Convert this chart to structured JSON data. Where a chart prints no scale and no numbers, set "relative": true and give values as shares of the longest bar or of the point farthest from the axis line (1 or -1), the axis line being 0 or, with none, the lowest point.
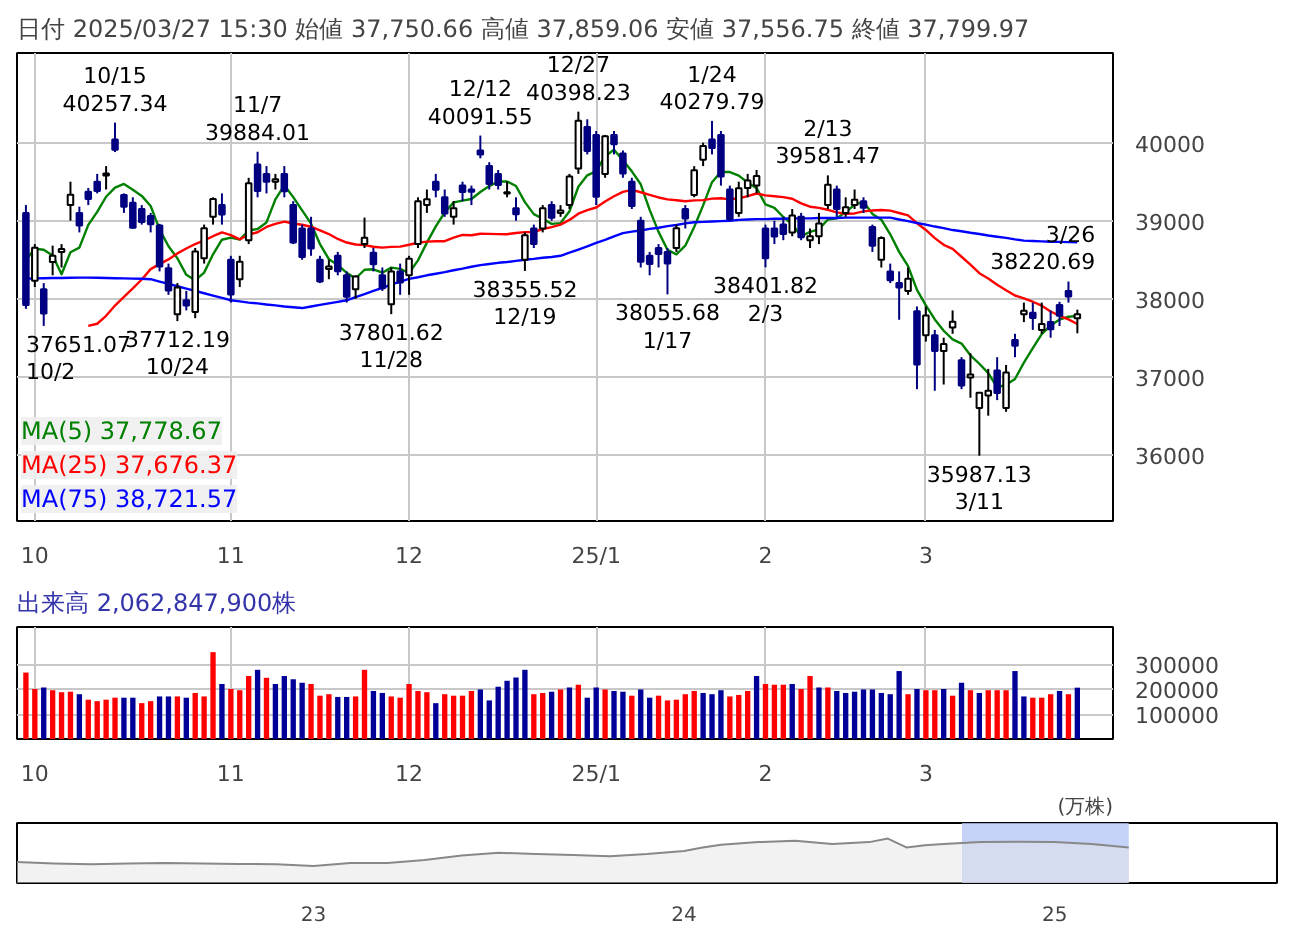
{
  "chart_data": [
    {
      "type": "candlestick",
      "title": "日付 2025/03/27 15:30 始値 37,750.66 高値 37,859.06 安値 37,556.75 終値 37,799.97",
      "categories": [
        null,
        "10",
        null,
        null,
        null,
        null,
        null,
        null,
        null,
        null,
        null,
        null,
        null,
        null,
        null,
        null,
        null,
        null,
        null,
        null,
        null,
        null,
        null,
        "11",
        null,
        null,
        null,
        null,
        null,
        null,
        null,
        null,
        null,
        null,
        null,
        null,
        null,
        null,
        null,
        null,
        null,
        null,
        null,
        "12",
        null,
        null,
        null,
        null,
        null,
        null,
        null,
        null,
        null,
        null,
        null,
        null,
        null,
        null,
        null,
        null,
        null,
        null,
        null,
        null,
        "25/1",
        null,
        null,
        null,
        null,
        null,
        null,
        null,
        null,
        null,
        null,
        null,
        null,
        null,
        null,
        null,
        null,
        null,
        null,
        "2",
        null,
        null,
        null,
        null,
        null,
        null,
        null,
        null,
        null,
        null,
        null,
        null,
        null,
        null,
        null,
        null,
        null,
        "3",
        null,
        null,
        null,
        null,
        null,
        null,
        null,
        null,
        null,
        null,
        null,
        null,
        null,
        null,
        null,
        null,
        null
      ],
      "ohlc": [
        [
          39100,
          39200,
          37870,
          37920
        ],
        [
          38230,
          38700,
          38150,
          38652
        ],
        [
          38120,
          38200,
          37651.07,
          37809
        ],
        [
          38470,
          38680,
          38300,
          38552
        ],
        [
          38600,
          38700,
          38400,
          38636
        ],
        [
          39200,
          39500,
          39000,
          39333
        ],
        [
          39100,
          39180,
          38850,
          38938
        ],
        [
          39370,
          39420,
          39200,
          39278
        ],
        [
          39500,
          39600,
          39350,
          39381
        ],
        [
          39580,
          39700,
          39400,
          39606
        ],
        [
          40040,
          40257.34,
          39880,
          39911
        ],
        [
          39330,
          39350,
          39100,
          39180
        ],
        [
          39230,
          39300,
          38900,
          38911
        ],
        [
          39150,
          39200,
          38950,
          38982
        ],
        [
          39060,
          39100,
          38850,
          38955
        ],
        [
          38940,
          38960,
          38350,
          38412
        ],
        [
          38390,
          38450,
          38050,
          38105
        ],
        [
          37800,
          38200,
          37712.19,
          38143
        ],
        [
          37980,
          38100,
          37850,
          37914
        ],
        [
          37830,
          38650,
          37750,
          38606
        ],
        [
          38520,
          38950,
          38450,
          38904
        ],
        [
          39050,
          39300,
          38950,
          39277
        ],
        [
          39200,
          39350,
          38950,
          39081
        ],
        [
          38500,
          38550,
          37950,
          38054
        ],
        [
          38250,
          38550,
          38150,
          38475
        ],
        [
          38750,
          39550,
          38700,
          39481
        ],
        [
          39720,
          39884.01,
          39300,
          39381
        ],
        [
          39600,
          39700,
          39350,
          39500
        ],
        [
          39500,
          39600,
          39400,
          39533
        ],
        [
          39600,
          39700,
          39300,
          39376
        ],
        [
          39200,
          39250,
          38700,
          38722
        ],
        [
          38900,
          38950,
          38500,
          38536
        ],
        [
          38900,
          39050,
          38550,
          38643
        ],
        [
          38500,
          38550,
          38200,
          38221
        ],
        [
          38380,
          38500,
          38250,
          38414
        ],
        [
          38550,
          38600,
          38300,
          38352
        ],
        [
          38300,
          38350,
          37950,
          38026
        ],
        [
          38120,
          38300,
          38000,
          38284
        ],
        [
          38700,
          39040,
          38650,
          38780
        ],
        [
          38590,
          38650,
          38350,
          38442
        ],
        [
          38300,
          38400,
          38100,
          38135
        ],
        [
          37930,
          38400,
          37801.62,
          38349
        ],
        [
          38350,
          38450,
          38050,
          38208
        ],
        [
          38300,
          38550,
          38050,
          38513
        ],
        [
          38700,
          39300,
          38650,
          39249
        ],
        [
          39200,
          39400,
          39100,
          39276
        ],
        [
          39500,
          39600,
          39300,
          39396
        ],
        [
          39300,
          39400,
          39050,
          39091
        ],
        [
          39050,
          39250,
          38950,
          39161
        ],
        [
          39450,
          39500,
          39250,
          39368
        ],
        [
          39400,
          39450,
          39200,
          39372
        ],
        [
          39900,
          40091.55,
          39800,
          39849
        ],
        [
          39700,
          39750,
          39400,
          39470
        ],
        [
          39600,
          39650,
          39400,
          39457
        ],
        [
          39350,
          39500,
          39300,
          39365
        ],
        [
          39160,
          39300,
          39000,
          39082
        ],
        [
          38500,
          38850,
          38355.52,
          38814
        ],
        [
          38900,
          38950,
          38650,
          38702
        ],
        [
          38900,
          39200,
          38850,
          39161
        ],
        [
          39200,
          39250,
          39000,
          39037
        ],
        [
          39100,
          39200,
          39050,
          39130
        ],
        [
          39200,
          39600,
          39150,
          39568
        ],
        [
          39670,
          40398.23,
          39600,
          40281
        ],
        [
          40200,
          40300,
          39850,
          39895
        ],
        [
          40100,
          40150,
          39200,
          39307
        ],
        [
          39600,
          40100,
          39550,
          40083
        ],
        [
          40100,
          40150,
          39850,
          39981
        ],
        [
          39860,
          39900,
          39550,
          39605
        ],
        [
          39500,
          39550,
          39150,
          39190
        ],
        [
          39000,
          39050,
          38400,
          38474
        ],
        [
          38550,
          38600,
          38300,
          38445
        ],
        [
          38650,
          38700,
          38400,
          38573
        ],
        [
          38600,
          38650,
          38055.68,
          38451
        ],
        [
          38650,
          38950,
          38600,
          38903
        ],
        [
          39150,
          39200,
          38900,
          39028
        ],
        [
          39330,
          39700,
          39300,
          39646
        ],
        [
          39780,
          40000,
          39700,
          39959
        ],
        [
          40040,
          40279.79,
          39850,
          39932
        ],
        [
          40100,
          40150,
          39450,
          39566
        ],
        [
          39400,
          39450,
          39000,
          39017
        ],
        [
          39100,
          39500,
          39050,
          39415
        ],
        [
          39420,
          39600,
          39300,
          39514
        ],
        [
          39450,
          39650,
          39350,
          39572
        ],
        [
          38900,
          38950,
          38401.82,
          38520
        ],
        [
          38900,
          39000,
          38700,
          38798
        ],
        [
          38950,
          39050,
          38750,
          38831
        ],
        [
          38850,
          39150,
          38800,
          39067
        ],
        [
          39050,
          39100,
          38750,
          38787
        ],
        [
          38750,
          38900,
          38650,
          38801
        ],
        [
          38800,
          39100,
          38700,
          38964
        ],
        [
          39200,
          39581.47,
          39150,
          39461
        ],
        [
          39400,
          39450,
          39050,
          39149
        ],
        [
          39100,
          39300,
          39050,
          39174
        ],
        [
          39200,
          39400,
          39150,
          39270
        ],
        [
          39250,
          39300,
          39100,
          39165
        ],
        [
          38920,
          38950,
          38600,
          38678
        ],
        [
          38500,
          38800,
          38400,
          38777
        ],
        [
          38350,
          38450,
          38200,
          38238
        ],
        [
          38200,
          38350,
          37730,
          38142
        ],
        [
          38100,
          38400,
          38050,
          38256
        ],
        [
          37840,
          37900,
          36840,
          37156
        ],
        [
          37530,
          37900,
          37450,
          37785
        ],
        [
          37530,
          37600,
          36820,
          37331
        ],
        [
          37330,
          37500,
          36900,
          37418
        ],
        [
          37630,
          37850,
          37550,
          37705
        ],
        [
          37210,
          37250,
          36840,
          36887
        ],
        [
          36990,
          37300,
          36730,
          37028
        ],
        [
          36600,
          36800,
          35987.13,
          36793
        ],
        [
          36760,
          37100,
          36500,
          36819
        ],
        [
          37080,
          37250,
          36700,
          36790
        ],
        [
          36600,
          37150,
          36550,
          37053
        ],
        [
          37470,
          37550,
          37250,
          37397
        ],
        [
          37800,
          37950,
          37700,
          37845
        ],
        [
          37820,
          37950,
          37600,
          37752
        ],
        [
          37600,
          37950,
          37550,
          37677
        ],
        [
          37700,
          37850,
          37500,
          37608
        ],
        [
          37920,
          37960,
          37650,
          37781
        ],
        [
          38100,
          38220.69,
          37950,
          38027
        ],
        [
          37750.66,
          37859.06,
          37556.75,
          37799.97
        ]
      ],
      "colors": [
        "#000080",
        "#ffffff",
        "#000080",
        "#ffffff",
        "#ffffff",
        "#ffffff",
        "#000080",
        "#000080",
        "#000080",
        "#ffffff",
        "#000080",
        "#000080",
        "#000080",
        "#000080",
        "#000080",
        "#000080",
        "#000080",
        "#ffffff",
        "#000080",
        "#ffffff",
        "#ffffff",
        "#ffffff",
        "#000080",
        "#000080",
        "#ffffff",
        "#ffffff",
        "#000080",
        "#000080",
        "#ffffff",
        "#000080",
        "#000080",
        "#000080",
        "#000080",
        "#000080",
        "#ffffff",
        "#000080",
        "#000080",
        "#ffffff",
        "#ffffff",
        "#000080",
        "#000080",
        "#ffffff",
        "#000080",
        "#ffffff",
        "#ffffff",
        "#ffffff",
        "#000080",
        "#000080",
        "#ffffff",
        "#000080",
        "#000080",
        "#000080",
        "#000080",
        "#000080",
        "#ffffff",
        "#000080",
        "#ffffff",
        "#000080",
        "#ffffff",
        "#000080",
        "#ffffff",
        "#ffffff",
        "#ffffff",
        "#000080",
        "#000080",
        "#ffffff",
        "#000080",
        "#000080",
        "#000080",
        "#000080",
        "#000080",
        "#000080",
        "#000080",
        "#ffffff",
        "#000080",
        "#ffffff",
        "#ffffff",
        "#000080",
        "#000080",
        "#000080",
        "#ffffff",
        "#ffffff",
        "#ffffff",
        "#000080",
        "#000080",
        "#000080",
        "#ffffff",
        "#000080",
        "#ffffff",
        "#ffffff",
        "#ffffff",
        "#000080",
        "#ffffff",
        "#ffffff",
        "#000080",
        "#000080",
        "#ffffff",
        "#000080",
        "#000080",
        "#ffffff",
        "#000080",
        "#ffffff",
        "#000080",
        "#ffffff",
        "#ffffff",
        "#000080",
        "#ffffff",
        "#ffffff",
        "#ffffff",
        "#000080",
        "#ffffff",
        "#000080",
        "#ffffff",
        "#000080",
        "#ffffff",
        "#000080",
        "#000080",
        "#000080",
        "#ffffff"
      ],
      "value_labels": [
        null,
        null,
        "37651.07\n10/2",
        null,
        null,
        null,
        null,
        null,
        null,
        null,
        "10/15\n40257.34",
        null,
        null,
        null,
        null,
        null,
        null,
        "37712.19\n10/24",
        null,
        null,
        null,
        null,
        null,
        null,
        null,
        null,
        "11/7\n39884.01",
        null,
        null,
        null,
        null,
        null,
        null,
        null,
        null,
        null,
        null,
        null,
        null,
        null,
        null,
        "37801.62\n11/28",
        null,
        null,
        null,
        null,
        null,
        null,
        null,
        null,
        null,
        "12/12\n40091.55",
        null,
        null,
        null,
        null,
        "38355.52\n12/19",
        null,
        null,
        null,
        null,
        null,
        "12/27\n40398.23",
        null,
        null,
        null,
        null,
        null,
        null,
        null,
        null,
        null,
        "38055.68\n1/17",
        null,
        null,
        null,
        null,
        "1/24\n40279.79",
        null,
        null,
        null,
        null,
        null,
        "38401.82\n2/3",
        null,
        null,
        null,
        null,
        null,
        null,
        "2/13\n39581.47",
        null,
        null,
        null,
        null,
        null,
        null,
        null,
        null,
        null,
        null,
        null,
        null,
        null,
        null,
        null,
        null,
        "35987.13\n3/11",
        null,
        null,
        null,
        null,
        null,
        null,
        null,
        null,
        null,
        "3/26\n38220.69",
        null
      ],
      "series": [
        {
          "name": "MA(5) 37,778.67",
          "color": "#008000",
          "type": "line",
          "values": [
            38497,
            38640,
            38627,
            38553,
            38314,
            38596,
            38654,
            38947,
            39113,
            39307,
            39423,
            39471,
            39398,
            39318,
            39188,
            38888,
            38673,
            38519,
            38306,
            38236,
            38334,
            38569,
            38756,
            38784,
            38758,
            38874,
            38894,
            38978,
            39274,
            39454,
            39302,
            39133,
            38962,
            38700,
            38507,
            38433,
            38331,
            38259,
            38371,
            38377,
            38333,
            38398,
            38383,
            38329,
            38491,
            38719,
            38928,
            39105,
            39235,
            39258,
            39278,
            39368,
            39444,
            39503,
            39503,
            39445,
            39238,
            39084,
            39025,
            38959,
            38969,
            39120,
            39435,
            39582,
            39636,
            39827,
            39909,
            39774,
            39633,
            39467,
            39139,
            38857,
            38627,
            38569,
            38680,
            38920,
            39197,
            39494,
            39626,
            39624,
            39578,
            39489,
            39417,
            39208,
            39164,
            39047,
            38958,
            38801,
            38857,
            38890,
            39016,
            39032,
            39110,
            39204,
            39244,
            39087,
            39013,
            38826,
            38600,
            38418,
            38114,
            37915,
            37734,
            37589,
            37479,
            37425,
            37274,
            37166,
            37046,
            36863,
            36897,
            36970,
            37181,
            37367,
            37545,
            37656,
            37733,
            37769,
            37778.67
          ]
        },
        {
          "name": "MA(25) 37,676.37",
          "color": "#ff0000",
          "type": "line",
          "values": [
            null,
            null,
            null,
            null,
            null,
            null,
            null,
            37651,
            37679,
            37781,
            37912,
            38023,
            38133,
            38246,
            38379,
            38443,
            38504,
            38581,
            38643,
            38701,
            38748,
            38801,
            38850,
            38815,
            38761,
            38823,
            38852,
            38920,
            38959,
            38989,
            38964,
            38948,
            38923,
            38876,
            38829,
            38766,
            38720,
            38695,
            38687,
            38666,
            38655,
            38665,
            38668,
            38692,
            38717,
            38732,
            38737,
            38737,
            38782,
            38817,
            38813,
            38832,
            38831,
            38828,
            38827,
            38842,
            38853,
            38855,
            38893,
            38918,
            38949,
            39010,
            39090,
            39135,
            39169,
            39247,
            39313,
            39369,
            39396,
            39365,
            39331,
            39298,
            39273,
            39263,
            39249,
            39260,
            39264,
            39283,
            39287,
            39273,
            39287,
            39315,
            39349,
            39324,
            39314,
            39302,
            39282,
            39222,
            39179,
            39165,
            39140,
            39107,
            39089,
            39093,
            39120,
            39130,
            39138,
            39129,
            39099,
            39068,
            38968,
            38881,
            38777,
            38691,
            38639,
            38538,
            38438,
            38327,
            38259,
            38179,
            38108,
            38041,
            38003,
            37961,
            37910,
            37836,
            37781,
            37735,
            37676.37
          ]
        },
        {
          "name": "MA(75) 38,721.57",
          "color": "#0000ff",
          "type": "line",
          "values": [
            38255,
            38260,
            38262,
            38265,
            38265,
            38268,
            38270,
            38270,
            38268,
            38265,
            38262,
            38260,
            38258,
            38255,
            38250,
            38220,
            38190,
            38160,
            38130,
            38100,
            38070,
            38040,
            38010,
            37980,
            37965,
            37950,
            37940,
            37925,
            37915,
            37900,
            37890,
            37880,
            37900,
            37920,
            37940,
            37960,
            37980,
            38020,
            38060,
            38100,
            38140,
            38180,
            38220,
            38255,
            38275,
            38300,
            38320,
            38340,
            38365,
            38385,
            38410,
            38430,
            38445,
            38460,
            38470,
            38485,
            38500,
            38510,
            38525,
            38535,
            38550,
            38590,
            38630,
            38670,
            38715,
            38755,
            38800,
            38840,
            38860,
            38875,
            38895,
            38910,
            38930,
            38945,
            38965,
            38980,
            38985,
            38990,
            38995,
            39000,
            39010,
            39015,
            39020,
            39020,
            39025,
            39025,
            39030,
            39030,
            39030,
            39035,
            39035,
            39035,
            39040,
            39040,
            39040,
            39040,
            39040,
            39040,
            39015,
            38995,
            38970,
            38950,
            38925,
            38905,
            38880,
            38865,
            38845,
            38830,
            38810,
            38795,
            38780,
            38760,
            38745,
            38740,
            38735,
            38730,
            38728,
            38725,
            38721.57
          ]
        }
      ],
      "ylim": [
        35150,
        41150
      ],
      "yticks": [
        36000,
        37000,
        38000,
        39000,
        40000
      ],
      "grid": true,
      "legend": "bottom left"
    },
    {
      "type": "bar",
      "title": "出来高 2,062,847,900株",
      "ylabel": "(万株)",
      "categories": [
        null,
        "10",
        null,
        null,
        null,
        null,
        null,
        null,
        null,
        null,
        null,
        null,
        null,
        null,
        null,
        null,
        null,
        null,
        null,
        null,
        null,
        null,
        null,
        "11",
        null,
        null,
        null,
        null,
        null,
        null,
        null,
        null,
        null,
        null,
        null,
        null,
        null,
        null,
        null,
        null,
        null,
        null,
        null,
        "12",
        null,
        null,
        null,
        null,
        null,
        null,
        null,
        null,
        null,
        null,
        null,
        null,
        null,
        null,
        null,
        null,
        null,
        null,
        null,
        null,
        "25/1",
        null,
        null,
        null,
        null,
        null,
        null,
        null,
        null,
        null,
        null,
        null,
        null,
        null,
        null,
        null,
        null,
        null,
        null,
        "2",
        null,
        null,
        null,
        null,
        null,
        null,
        null,
        null,
        null,
        null,
        null,
        null,
        null,
        null,
        null,
        null,
        null,
        "3",
        null,
        null,
        null,
        null,
        null,
        null,
        null,
        null,
        null,
        null,
        null,
        null,
        null,
        null,
        null,
        null,
        null
      ],
      "values": [
        267000,
        201000,
        207000,
        196000,
        188000,
        190000,
        180000,
        158000,
        152000,
        158000,
        166000,
        166000,
        166000,
        144000,
        152000,
        171000,
        171000,
        171000,
        166000,
        185000,
        171000,
        349000,
        221000,
        201000,
        196000,
        253000,
        278000,
        246000,
        221000,
        253000,
        240000,
        226000,
        221000,
        174000,
        180000,
        169000,
        169000,
        171000,
        278000,
        193000,
        185000,
        171000,
        166000,
        221000,
        193000,
        188000,
        144000,
        180000,
        174000,
        174000,
        193000,
        199000,
        155000,
        210000,
        234000,
        247000,
        278000,
        180000,
        185000,
        190000,
        199000,
        207000,
        218000,
        166000,
        207000,
        199000,
        193000,
        190000,
        174000,
        199000,
        166000,
        174000,
        155000,
        158000,
        180000,
        193000,
        185000,
        180000,
        196000,
        171000,
        177000,
        193000,
        253000,
        221000,
        218000,
        218000,
        221000,
        201000,
        253000,
        207000,
        207000,
        193000,
        185000,
        190000,
        199000,
        199000,
        185000,
        180000,
        273000,
        180000,
        201000,
        196000,
        196000,
        201000,
        174000,
        226000,
        196000,
        185000,
        196000,
        196000,
        196000,
        273000,
        171000,
        166000,
        166000,
        180000,
        193000,
        180000,
        206285
      ],
      "colors": [
        "#ff0000",
        "#ff0000",
        "#000099",
        "#ff0000",
        "#ff0000",
        "#ff0000",
        "#000099",
        "#ff0000",
        "#ff0000",
        "#ff0000",
        "#ff0000",
        "#000099",
        "#000099",
        "#ff0000",
        "#ff0000",
        "#000099",
        "#000099",
        "#ff0000",
        "#000099",
        "#ff0000",
        "#ff0000",
        "#ff0000",
        "#000099",
        "#ff0000",
        "#ff0000",
        "#ff0000",
        "#000099",
        "#ff0000",
        "#000099",
        "#000099",
        "#000099",
        "#000099",
        "#ff0000",
        "#ff0000",
        "#ff0000",
        "#000099",
        "#000099",
        "#ff0000",
        "#ff0000",
        "#000099",
        "#000099",
        "#ff0000",
        "#ff0000",
        "#ff0000",
        "#ff0000",
        "#ff0000",
        "#000099",
        "#ff0000",
        "#ff0000",
        "#ff0000",
        "#ff0000",
        "#000099",
        "#000099",
        "#000099",
        "#000099",
        "#000099",
        "#000099",
        "#ff0000",
        "#ff0000",
        "#000099",
        "#ff0000",
        "#000099",
        "#ff0000",
        "#000099",
        "#000099",
        "#ff0000",
        "#000099",
        "#000099",
        "#ff0000",
        "#000099",
        "#000099",
        "#ff0000",
        "#ff0000",
        "#ff0000",
        "#ff0000",
        "#ff0000",
        "#000099",
        "#000099",
        "#000099",
        "#ff0000",
        "#ff0000",
        "#ff0000",
        "#000099",
        "#ff0000",
        "#ff0000",
        "#ff0000",
        "#000099",
        "#ff0000",
        "#ff0000",
        "#000099",
        "#ff0000",
        "#000099",
        "#000099",
        "#000099",
        "#000099",
        "#000099",
        "#000099",
        "#000099",
        "#000099",
        "#ff0000",
        "#000099",
        "#ff0000",
        "#ff0000",
        "#000099",
        "#ff0000",
        "#000099",
        "#ff0000",
        "#000099",
        "#ff0000",
        "#ff0000",
        "#ff0000",
        "#000099",
        "#000099",
        "#ff0000",
        "#ff0000",
        "#ff0000",
        "#000099",
        "#ff0000",
        "#000099"
      ],
      "ylim": [
        0,
        450000
      ],
      "yticks": [
        100000,
        200000,
        300000
      ],
      "grid": true
    },
    {
      "type": "area",
      "relative": true,
      "color": "#888888",
      "x": [
        2022.2,
        2022.3,
        2022.4,
        2022.5,
        2022.6,
        2022.7,
        2022.8,
        2022.9,
        2023.0,
        2023.1,
        2023.2,
        2023.3,
        2023.4,
        2023.5,
        2023.6,
        2023.7,
        2023.8,
        2023.9,
        2024.0,
        2024.05,
        2024.1,
        2024.2,
        2024.3,
        2024.4,
        2024.5,
        2024.55,
        2024.6,
        2024.65,
        2024.7,
        2024.8,
        2024.9,
        2025.0,
        2025.1,
        2025.2
      ],
      "values": [
        0.47,
        0.44,
        0.42,
        0.44,
        0.45,
        0.44,
        0.43,
        0.42,
        0.38,
        0.45,
        0.45,
        0.52,
        0.62,
        0.68,
        0.65,
        0.63,
        0.6,
        0.65,
        0.72,
        0.8,
        0.86,
        0.92,
        0.95,
        0.88,
        0.92,
        1.0,
        0.8,
        0.85,
        0.88,
        0.92,
        0.93,
        0.92,
        0.88,
        0.8
      ],
      "xlim": [
        2022.2,
        2025.6
      ],
      "xticks": [
        {
          "value": 2023,
          "label": "23"
        },
        {
          "value": 2024,
          "label": "24"
        },
        {
          "value": 2025,
          "label": "25"
        }
      ],
      "bands": [
        {
          "axis": "x",
          "from": 2024.75,
          "to": 2025.2,
          "color": "#b8c8f8"
        }
      ],
      "tick_labels": "x"
    }
  ]
}
